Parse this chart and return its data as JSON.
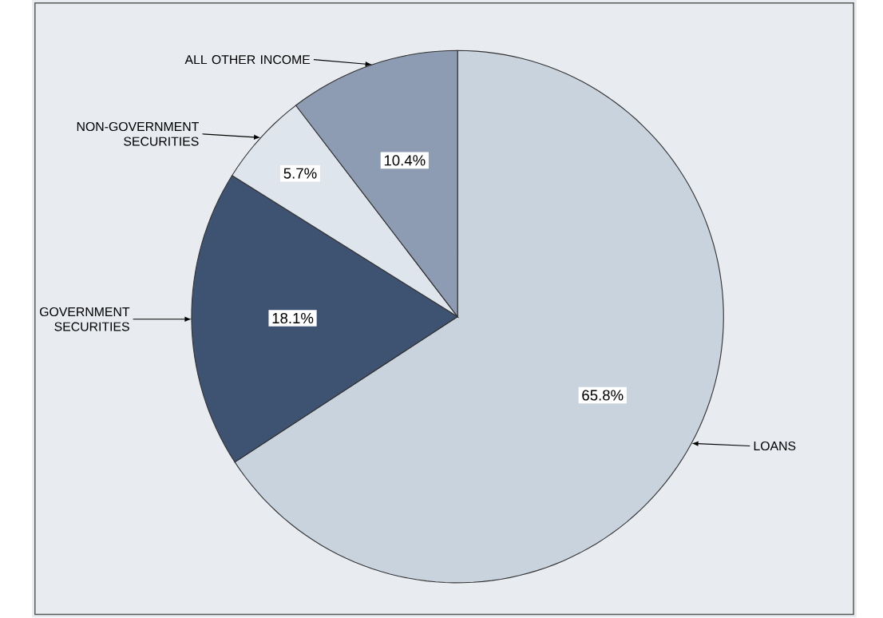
{
  "chart_data": {
    "type": "pie",
    "categories": [
      "LOANS",
      "GOVERNMENT SECURITIES",
      "NON-GOVERNMENT SECURITIES",
      "ALL OTHER INCOME"
    ],
    "values": [
      65.8,
      18.1,
      5.7,
      10.4
    ],
    "colors": [
      "#c9d3de",
      "#3e5272",
      "#dfe5ec",
      "#8d9cb2"
    ],
    "value_labels": [
      "65.8%",
      "18.1%",
      "5.7%",
      "10.4%"
    ]
  }
}
